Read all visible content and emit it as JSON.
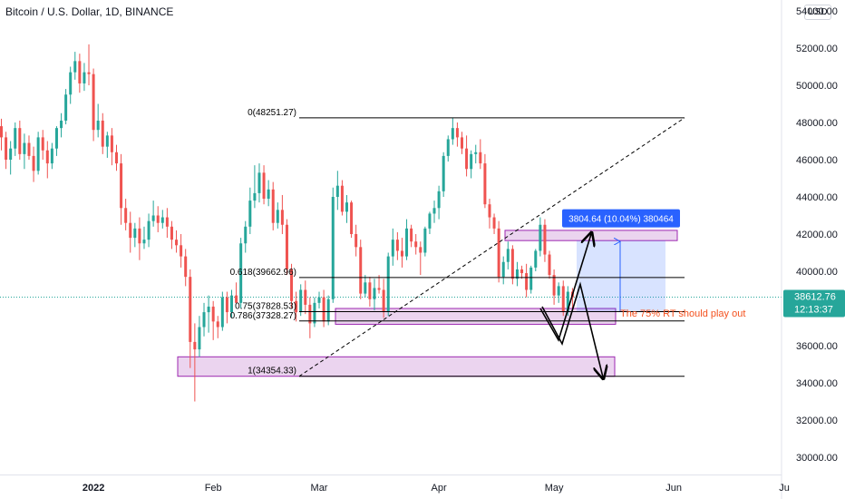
{
  "header": {
    "title": "Bitcoin / U.S. Dollar, 1D, BINANCE",
    "currency_button": "USD"
  },
  "chart_data": {
    "type": "candlestick",
    "symbol": "Bitcoin / U.S. Dollar",
    "interval": "1D",
    "exchange": "BINANCE",
    "y_ticks": [
      "54000.00",
      "52000.00",
      "50000.00",
      "48000.00",
      "46000.00",
      "44000.00",
      "42000.00",
      "40000.00",
      "36000.00",
      "34000.00",
      "32000.00",
      "30000.00"
    ],
    "x_ticks": [
      "2022",
      "Feb",
      "Mar",
      "Apr",
      "May",
      "Jun",
      "Ju"
    ],
    "ylim": [
      29600,
      54300
    ],
    "current_price": {
      "label": "38612.76",
      "countdown": "12:13:37",
      "value": 38612.76
    },
    "fib_levels": [
      {
        "label": "0(48251.27)",
        "value": 48251.27
      },
      {
        "label": "0.618(39662.96)",
        "value": 39662.96
      },
      {
        "label": "0.75(37828.53)",
        "value": 37828.53
      },
      {
        "label": "0.786(37328.27)",
        "value": 37328.27
      },
      {
        "label": "1(34354.33)",
        "value": 34354.33
      }
    ],
    "measure_label": "3804.64 (10.04%) 380464",
    "annotation": "The 75% RT should play out",
    "colors": {
      "up": "#26a69a",
      "down": "#ef5350",
      "zone": "#9c27b0",
      "measure": "#2962ff",
      "annotation": "#f4511e"
    },
    "ohlc": [
      [
        47800,
        48200,
        46500,
        47200
      ],
      [
        47200,
        47500,
        45500,
        46000
      ],
      [
        46000,
        47000,
        45200,
        46600
      ],
      [
        46600,
        48000,
        46200,
        47700
      ],
      [
        47700,
        48100,
        46000,
        46300
      ],
      [
        46300,
        47400,
        45500,
        46900
      ],
      [
        46900,
        47300,
        46000,
        46200
      ],
      [
        46200,
        46700,
        44800,
        45400
      ],
      [
        45400,
        47500,
        45200,
        47200
      ],
      [
        47200,
        47600,
        46000,
        46500
      ],
      [
        46500,
        47000,
        45000,
        45800
      ],
      [
        45800,
        46900,
        45500,
        46600
      ],
      [
        46600,
        47800,
        46200,
        47700
      ],
      [
        47700,
        48500,
        47200,
        48100
      ],
      [
        48100,
        49800,
        47900,
        49500
      ],
      [
        49500,
        51000,
        49000,
        50700
      ],
      [
        50700,
        51800,
        50300,
        51300
      ],
      [
        51300,
        51700,
        49600,
        50100
      ],
      [
        50100,
        51200,
        49700,
        50700
      ],
      [
        50700,
        52200,
        50000,
        50600
      ],
      [
        50600,
        50900,
        47000,
        47600
      ],
      [
        47600,
        49000,
        47200,
        48100
      ],
      [
        48100,
        48500,
        46300,
        46700
      ],
      [
        46700,
        47500,
        46100,
        47300
      ],
      [
        47300,
        47700,
        45700,
        46400
      ],
      [
        46400,
        46800,
        45400,
        45800
      ],
      [
        45800,
        46300,
        42500,
        43400
      ],
      [
        43400,
        43900,
        42200,
        42600
      ],
      [
        42600,
        43200,
        41000,
        41800
      ],
      [
        41800,
        42600,
        41300,
        42300
      ],
      [
        42300,
        42900,
        40600,
        41500
      ],
      [
        41500,
        42400,
        41200,
        41700
      ],
      [
        41700,
        43100,
        41300,
        42700
      ],
      [
        42700,
        43800,
        42400,
        43000
      ],
      [
        43000,
        43500,
        42100,
        42600
      ],
      [
        42600,
        43300,
        42300,
        42900
      ],
      [
        42900,
        43400,
        41800,
        42400
      ],
      [
        42400,
        42700,
        41200,
        41700
      ],
      [
        41700,
        42200,
        41000,
        41400
      ],
      [
        41400,
        42000,
        40200,
        40800
      ],
      [
        40800,
        41200,
        39200,
        39700
      ],
      [
        39700,
        40100,
        34800,
        36200
      ],
      [
        36200,
        37200,
        33000,
        35800
      ],
      [
        35800,
        37600,
        35400,
        37000
      ],
      [
        37000,
        38300,
        36500,
        37800
      ],
      [
        37800,
        38700,
        36700,
        38100
      ],
      [
        38100,
        38400,
        36300,
        37300
      ],
      [
        37300,
        37600,
        36400,
        37000
      ],
      [
        37000,
        38900,
        36800,
        38600
      ],
      [
        38600,
        38900,
        37200,
        37800
      ],
      [
        37800,
        39000,
        37500,
        38700
      ],
      [
        38700,
        39400,
        38300,
        38300
      ],
      [
        38300,
        41800,
        38000,
        41500
      ],
      [
        41500,
        42700,
        41000,
        42400
      ],
      [
        42400,
        44500,
        42000,
        43800
      ],
      [
        43800,
        45700,
        43400,
        44200
      ],
      [
        44200,
        45800,
        43700,
        45300
      ],
      [
        45300,
        45700,
        43600,
        43900
      ],
      [
        43900,
        44900,
        43500,
        44400
      ],
      [
        44400,
        44800,
        42200,
        42600
      ],
      [
        42600,
        43700,
        42300,
        43300
      ],
      [
        43300,
        44100,
        42000,
        42500
      ],
      [
        42500,
        42800,
        39800,
        40100
      ],
      [
        40100,
        40400,
        38000,
        38400
      ],
      [
        38400,
        38900,
        37300,
        37800
      ],
      [
        37800,
        39300,
        37600,
        39000
      ],
      [
        39000,
        39500,
        37700,
        38200
      ],
      [
        38200,
        38600,
        36400,
        37200
      ],
      [
        37200,
        38600,
        37000,
        38300
      ],
      [
        38300,
        38900,
        38000,
        38600
      ],
      [
        38600,
        39000,
        37000,
        37300
      ],
      [
        37300,
        38700,
        37100,
        38500
      ],
      [
        38500,
        44500,
        38300,
        44000
      ],
      [
        44000,
        45400,
        43300,
        44600
      ],
      [
        44600,
        44900,
        43000,
        43200
      ],
      [
        43200,
        44100,
        42600,
        43700
      ],
      [
        43700,
        43800,
        41800,
        42000
      ],
      [
        42000,
        42500,
        40800,
        41300
      ],
      [
        41300,
        41700,
        38500,
        38800
      ],
      [
        38800,
        39800,
        38600,
        39400
      ],
      [
        39400,
        39700,
        38100,
        38500
      ],
      [
        38500,
        39600,
        37900,
        39100
      ],
      [
        39100,
        39800,
        38800,
        39000
      ],
      [
        39000,
        39600,
        37500,
        37800
      ],
      [
        37800,
        41000,
        37600,
        40800
      ],
      [
        40800,
        42300,
        40300,
        41700
      ],
      [
        41700,
        42100,
        40600,
        41100
      ],
      [
        41100,
        41800,
        40200,
        40800
      ],
      [
        40800,
        42800,
        40600,
        42300
      ],
      [
        42300,
        42500,
        41300,
        41600
      ],
      [
        41600,
        42000,
        40900,
        41300
      ],
      [
        41300,
        41600,
        39800,
        41000
      ],
      [
        41000,
        42400,
        40800,
        42300
      ],
      [
        42300,
        43200,
        42000,
        43100
      ],
      [
        43100,
        43800,
        42600,
        43400
      ],
      [
        43400,
        44600,
        42800,
        44300
      ],
      [
        44300,
        46400,
        44000,
        46200
      ],
      [
        46200,
        47300,
        45900,
        47100
      ],
      [
        47100,
        48251,
        46800,
        47700
      ],
      [
        47700,
        48000,
        46700,
        47200
      ],
      [
        47200,
        47500,
        46300,
        46600
      ],
      [
        46600,
        47300,
        45100,
        45500
      ],
      [
        45500,
        46500,
        45000,
        46300
      ],
      [
        46300,
        46800,
        45800,
        46400
      ],
      [
        46400,
        47100,
        45500,
        45800
      ],
      [
        45800,
        46300,
        43400,
        43600
      ],
      [
        43600,
        43900,
        42300,
        42900
      ],
      [
        42900,
        43100,
        42000,
        42300
      ],
      [
        42300,
        42700,
        39400,
        39700
      ],
      [
        39700,
        40800,
        39300,
        40500
      ],
      [
        40500,
        41600,
        40100,
        41200
      ],
      [
        41200,
        41400,
        39300,
        39600
      ],
      [
        39600,
        40500,
        39200,
        40100
      ],
      [
        40100,
        40300,
        39600,
        39900
      ],
      [
        39900,
        40400,
        38600,
        39000
      ],
      [
        39000,
        40300,
        38800,
        40200
      ],
      [
        40200,
        41200,
        40000,
        41100
      ],
      [
        41100,
        42900,
        40800,
        42500
      ],
      [
        42500,
        42800,
        40500,
        40900
      ],
      [
        40900,
        41100,
        39600,
        39800
      ],
      [
        39800,
        40100,
        38200,
        38700
      ],
      [
        38700,
        39400,
        38300,
        39200
      ],
      [
        39200,
        39500,
        37600,
        37800
      ],
      [
        37800,
        39200,
        37600,
        38900
      ],
      [
        38900,
        39100,
        38000,
        38600
      ]
    ]
  }
}
